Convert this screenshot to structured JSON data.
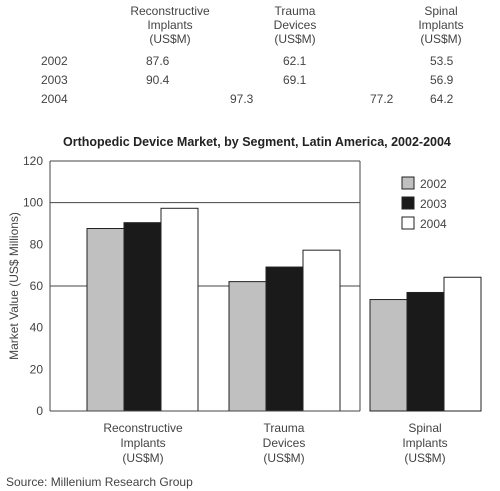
{
  "table": {
    "headers": [
      [
        "Reconstructive",
        "Implants",
        "(US$M)"
      ],
      [
        "Trauma",
        "Devices",
        "(US$M)"
      ],
      [
        "Spinal",
        "Implants",
        "(US$M)"
      ]
    ],
    "rows": [
      {
        "year": "2002",
        "values": [
          "87.6",
          "62.1",
          "53.5"
        ]
      },
      {
        "year": "2003",
        "values": [
          "90.4",
          "69.1",
          "56.9"
        ]
      },
      {
        "year": "2004",
        "values": [
          "97.3",
          "77.2",
          "64.2"
        ]
      }
    ]
  },
  "source": "Source: Millenium Research Group",
  "colors": {
    "2002": "#c0c0c0",
    "2003": "#1a1a1a",
    "2004": "#ffffff",
    "axis": "#444444"
  },
  "chart_data": {
    "type": "bar",
    "title": "Orthopedic Device Market, by Segment, Latin America, 2002-2004",
    "ylabel": "Market Value (US$ Millions)",
    "xlabel": "",
    "ylim": [
      0,
      120
    ],
    "yticks": [
      "0",
      "20",
      "40",
      "60",
      "80",
      "100",
      "120"
    ],
    "gridlines": [
      60,
      100
    ],
    "legend_position": "top-right",
    "categories": [
      [
        "Reconstructive",
        "Implants",
        "(US$M)"
      ],
      [
        "Trauma",
        "Devices",
        "(US$M)"
      ],
      [
        "Spinal",
        "Implants",
        "(US$M)"
      ]
    ],
    "series": [
      {
        "name": "2002",
        "values": [
          87.6,
          62.1,
          53.5
        ]
      },
      {
        "name": "2003",
        "values": [
          90.4,
          69.1,
          56.9
        ]
      },
      {
        "name": "2004",
        "values": [
          97.3,
          77.2,
          64.2
        ]
      }
    ]
  }
}
